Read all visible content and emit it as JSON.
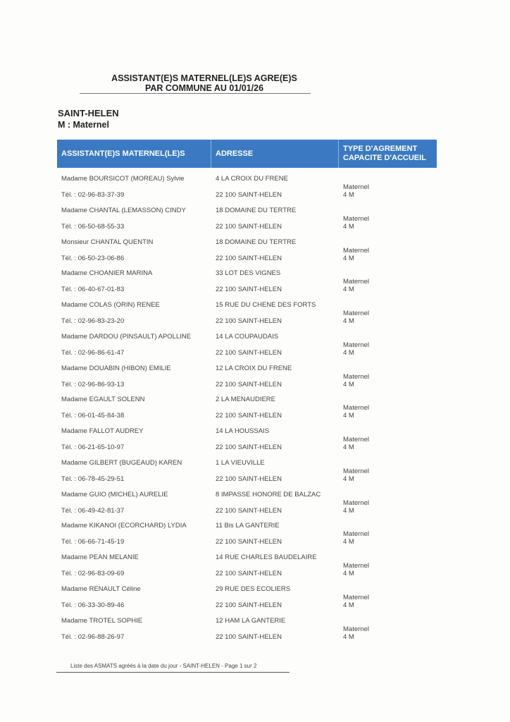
{
  "header": {
    "title_line1": "ASSISTANT(E)S MATERNEL(LE)S AGRE(E)S",
    "title_line2": "PAR COMMUNE AU 01/01/26",
    "commune": "SAINT-HELEN",
    "legend": "M : Maternel"
  },
  "table": {
    "columns": [
      "ASSISTANT(E)S MATERNEL(LE)S",
      "ADRESSE",
      "TYPE D'AGREMENT",
      "CAPACITE D'ACCUEIL"
    ],
    "header_color": "#3b7ac2",
    "rows": [
      {
        "name": "Madame BOURSICOT (MOREAU) Sylvie",
        "tel": "Tél. : 02-96-83-37-39",
        "address1": "4  LA CROIX DU FRENE",
        "address2": "22 100 SAINT-HELEN",
        "type": "Maternel",
        "capacity": "4 M"
      },
      {
        "name": "Madame CHANTAL (LEMASSON) CINDY",
        "tel": "Tél. : 06-50-68-55-33",
        "address1": "18 DOMAINE DU TERTRE",
        "address2": "22 100 SAINT-HELEN",
        "type": "Maternel",
        "capacity": "4 M"
      },
      {
        "name": "Monsieur CHANTAL QUENTIN",
        "tel": "Tél. : 06-50-23-06-86",
        "address1": "18 DOMAINE DU TERTRE",
        "address2": "22 100 SAINT-HELEN",
        "type": "Maternel",
        "capacity": "4 M"
      },
      {
        "name": "Madame CHOANIER MARINA",
        "tel": "Tél. : 06-40-67-01-83",
        "address1": "33 LOT DES VIGNES",
        "address2": "22 100 SAINT-HELEN",
        "type": "Maternel",
        "capacity": "4 M"
      },
      {
        "name": "Madame COLAS (ORIN) RENEE",
        "tel": "Tél. : 02-96-83-23-20",
        "address1": "15 RUE DU CHENE DES FORTS",
        "address2": "22 100 SAINT-HELEN",
        "type": "Maternel",
        "capacity": "4 M"
      },
      {
        "name": "Madame DARDOU (PINSAULT) APOLLINE",
        "tel": "Tél. : 02-96-86-61-47",
        "address1": "14  LA COUPAUDAIS",
        "address2": "22 100 SAINT-HELEN",
        "type": "Maternel",
        "capacity": "4 M"
      },
      {
        "name": "Madame DOUABIN (HIBON) EMILIE",
        "tel": "Tél. : 02-96-86-93-13",
        "address1": "12  LA CROIX DU FRENE",
        "address2": "22 100 SAINT-HELEN",
        "type": "Maternel",
        "capacity": "4 M"
      },
      {
        "name": "Madame EGAULT SOLENN",
        "tel": "Tél. : 06-01-45-84-38",
        "address1": "2  LA MENAUDIERE",
        "address2": "22 100 SAINT-HELEN",
        "type": "Maternel",
        "capacity": "4 M"
      },
      {
        "name": "Madame FALLOT AUDREY",
        "tel": "Tél. : 06-21-65-10-97",
        "address1": "14  LA HOUSSAIS",
        "address2": "22 100 SAINT-HELEN",
        "type": "Maternel",
        "capacity": "4 M"
      },
      {
        "name": "Madame GILBERT (BUGEAUD) KAREN",
        "tel": "Tél. : 06-78-45-29-51",
        "address1": "1  LA VIEUVILLE",
        "address2": "22 100 SAINT-HELEN",
        "type": "Maternel",
        "capacity": "4 M"
      },
      {
        "name": "Madame GUIO (MICHEL) AURELIE",
        "tel": "Tél. : 06-49-42-81-37",
        "address1": "8 IMPASSE HONORE DE BALZAC",
        "address2": "22 100 SAINT-HELEN",
        "type": "Maternel",
        "capacity": "4 M"
      },
      {
        "name": "Madame KIKANOI (ECORCHARD) LYDIA",
        "tel": "Tél. : 06-66-71-45-19",
        "address1": "11 Bis  LA GANTERIE",
        "address2": "22 100 SAINT-HELEN",
        "type": "Maternel",
        "capacity": "4 M"
      },
      {
        "name": "Madame PEAN MELANIE",
        "tel": "Tél. : 02-96-83-09-69",
        "address1": "14 RUE CHARLES BAUDELAIRE",
        "address2": "22 100 SAINT-HELEN",
        "type": "Maternel",
        "capacity": "4 M"
      },
      {
        "name": "Madame RENAULT Céline",
        "tel": "Tél. : 06-33-30-89-46",
        "address1": "29 RUE DES ECOLIERS",
        "address2": "22 100 SAINT-HELEN",
        "type": "Maternel",
        "capacity": "4 M"
      },
      {
        "name": "Madame TROTEL SOPHIE",
        "tel": "Tél. : 02-96-88-26-97",
        "address1": "12 HAM  LA GANTERIE",
        "address2": "22 100 SAINT-HELEN",
        "type": "Maternel",
        "capacity": "4 M"
      }
    ]
  },
  "footer": {
    "text": "Liste des ASMATS agréés à la date du jour - SAINT-HELEN - Page 1 sur 2"
  }
}
